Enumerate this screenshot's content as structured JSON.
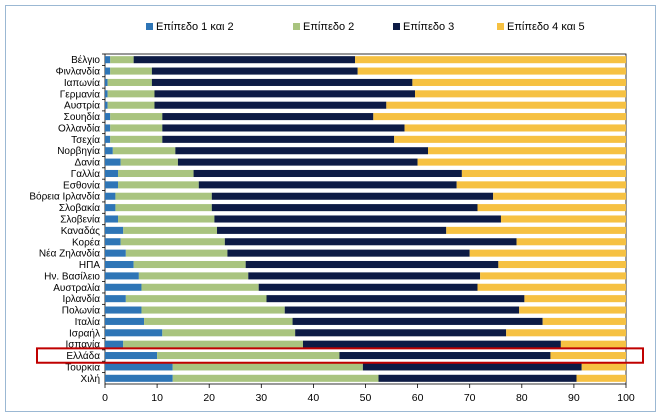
{
  "chart_data": {
    "type": "bar",
    "orientation": "horizontal",
    "stacked": true,
    "title": "",
    "xlabel": "",
    "ylabel": "",
    "xlim": [
      0,
      100
    ],
    "x_ticks": [
      0,
      10,
      20,
      30,
      40,
      50,
      60,
      70,
      80,
      90,
      100
    ],
    "legend_position": "top",
    "highlighted_category": "Ελλάδα",
    "categories": [
      "Βέλγιο",
      "Φινλανδία",
      "Ιαπωνία",
      "Γερμανία",
      "Αυστρία",
      "Σουηδία",
      "Ολλανδία",
      "Τσεχία",
      "Νορβηγία",
      "Δανία",
      "Γαλλία",
      "Εσθονία",
      "Βόρεια Ιρλανδία",
      "Σλοβακία",
      "Σλοβενία",
      "Καναδάς",
      "Κορέα",
      "Νέα Ζηλανδία",
      "ΗΠΑ",
      "Ην. Βασίλειο",
      "Αυστραλία",
      "Ιρλανδία",
      "Πολωνία",
      "Ιταλία",
      "Ισραήλ",
      "Ισπανία",
      "Ελλάδα",
      "Τουρκία",
      "Χιλή"
    ],
    "series": [
      {
        "name": "Επίπεδο 1 και 2",
        "color": "#2e75b6",
        "values": [
          1.0,
          1.0,
          0.5,
          0.5,
          0.5,
          1.0,
          1.0,
          1.0,
          1.5,
          3.0,
          2.5,
          2.5,
          2.0,
          2.0,
          2.5,
          3.5,
          3.0,
          4.0,
          5.5,
          6.5,
          7.0,
          4.0,
          7.0,
          7.5,
          11.0,
          3.5,
          10.0,
          13.0,
          13.0
        ]
      },
      {
        "name": "Επίπεδο 2",
        "color": "#a9c47f",
        "values": [
          4.5,
          8.0,
          8.5,
          9.0,
          9.0,
          10.0,
          10.0,
          10.0,
          12.0,
          11.0,
          14.5,
          15.5,
          18.5,
          18.5,
          18.5,
          18.0,
          20.0,
          19.5,
          21.5,
          21.0,
          22.5,
          27.0,
          27.5,
          28.5,
          25.5,
          34.5,
          35.0,
          36.5,
          39.5
        ]
      },
      {
        "name": "Επίπεδο 3",
        "color": "#0d1b45",
        "values": [
          42.5,
          39.5,
          50.0,
          50.0,
          44.5,
          40.5,
          46.5,
          44.5,
          48.5,
          46.0,
          51.5,
          49.5,
          54.0,
          51.0,
          55.0,
          44.0,
          56.0,
          46.5,
          48.5,
          44.5,
          42.0,
          49.5,
          45.0,
          48.0,
          40.5,
          49.5,
          40.5,
          42.0,
          38.0
        ]
      },
      {
        "name": "Επίπεδο 4 και 5",
        "color": "#f6c142",
        "values": [
          52.0,
          51.5,
          41.0,
          40.5,
          46.0,
          48.5,
          42.5,
          44.5,
          38.0,
          40.0,
          31.5,
          32.5,
          25.5,
          28.5,
          24.0,
          34.5,
          21.0,
          30.0,
          24.5,
          28.0,
          28.5,
          19.5,
          20.5,
          16.0,
          23.0,
          12.5,
          14.5,
          8.5,
          9.5
        ]
      }
    ]
  }
}
